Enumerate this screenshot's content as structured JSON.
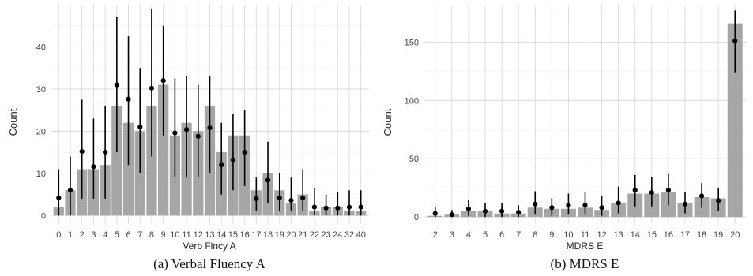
{
  "chart_data": [
    {
      "type": "bar",
      "caption": "(a) Verbal Fluency A",
      "xlabel": "Verb Flncy A",
      "ylabel": "Count",
      "ylim": [
        -2,
        50
      ],
      "yticks": [
        0,
        10,
        20,
        30,
        40
      ],
      "categories": [
        "0",
        "1",
        "2",
        "3",
        "4",
        "5",
        "6",
        "7",
        "8",
        "9",
        "10",
        "11",
        "12",
        "13",
        "14",
        "15",
        "16",
        "17",
        "18",
        "19",
        "20",
        "21",
        "22",
        "23",
        "24",
        "32",
        "40"
      ],
      "values": [
        2,
        6,
        11,
        11,
        12,
        26,
        22,
        20,
        26,
        31,
        19,
        22,
        20,
        26,
        15,
        19,
        19,
        6,
        10,
        6,
        3,
        5,
        1,
        2,
        2,
        1,
        1
      ],
      "points": [
        4.2,
        6.0,
        15.2,
        11.6,
        15.0,
        31.0,
        27.6,
        21.0,
        30.2,
        32.0,
        19.6,
        20.4,
        18.8,
        20.8,
        12.0,
        13.2,
        15.0,
        4.0,
        8.4,
        4.2,
        3.6,
        4.2,
        2.0,
        1.8,
        1.8,
        2.0,
        2.0
      ],
      "err_low": [
        0,
        0,
        4,
        4,
        4,
        15,
        12,
        10,
        14,
        19,
        9,
        9,
        9,
        10,
        5,
        6,
        7,
        1,
        3,
        1,
        1,
        1,
        0,
        0,
        0,
        0,
        0
      ],
      "err_high": [
        11,
        14,
        27.5,
        23,
        26,
        47,
        42.5,
        35,
        49,
        45,
        32.5,
        33,
        31,
        33,
        22,
        24,
        25,
        9,
        17.5,
        10,
        9,
        11,
        6.5,
        5,
        5.5,
        6,
        6
      ],
      "grid": true
    },
    {
      "type": "bar",
      "caption": "(b) MDRS E",
      "xlabel": "MDRS E",
      "ylabel": "Count",
      "ylim": [
        -6,
        182
      ],
      "yticks": [
        0,
        50,
        100,
        150
      ],
      "categories": [
        "2",
        "3",
        "4",
        "5",
        "6",
        "7",
        "8",
        "9",
        "10",
        "11",
        "12",
        "13",
        "14",
        "15",
        "16",
        "17",
        "18",
        "19",
        "20"
      ],
      "values": [
        1,
        2,
        5,
        5,
        3,
        3,
        8,
        7,
        7,
        8,
        6,
        12,
        20,
        20,
        21,
        12,
        17,
        16,
        166
      ],
      "points": [
        3,
        2,
        7,
        5,
        5,
        4,
        11,
        8,
        10,
        10,
        8,
        12,
        23,
        21,
        23,
        11,
        18,
        14,
        151
      ],
      "err_low": [
        0,
        0,
        1,
        0,
        0,
        0,
        2,
        1,
        2,
        2,
        1,
        3,
        9,
        9,
        10,
        3,
        8,
        5,
        124
      ],
      "err_high": [
        9,
        6,
        15,
        12,
        12,
        10,
        22,
        16,
        20,
        21,
        18,
        26,
        36,
        34,
        37,
        21,
        29,
        25,
        177
      ],
      "grid": true
    }
  ]
}
